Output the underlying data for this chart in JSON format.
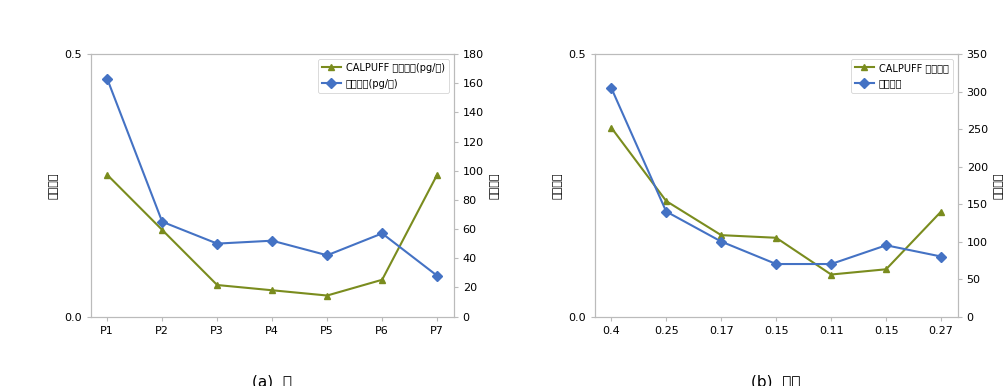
{
  "chart_a": {
    "x_labels": [
      "P1",
      "P2",
      "P3",
      "P4",
      "P5",
      "P6",
      "P7"
    ],
    "model_values": [
      0.27,
      0.165,
      0.06,
      0.05,
      0.04,
      0.07,
      0.27
    ],
    "measured_values": [
      163,
      65,
      50,
      52,
      42,
      57,
      28
    ],
    "left_ylim": [
      0,
      0.5
    ],
    "right_ylim": [
      0,
      180
    ],
    "right_yticks": [
      0,
      20,
      40,
      60,
      80,
      100,
      120,
      140,
      160,
      180
    ],
    "left_yticks": [
      0,
      0.5
    ],
    "legend_model": "CALPUFF 모델결과(pg/㎥)",
    "legend_measured": "실측결과(pg/㎥)",
    "left_ylabel": "모델결과",
    "right_ylabel": "실측결과",
    "subtitle": "(a)  봄"
  },
  "chart_b": {
    "x_labels": [
      "0.4",
      "0.25",
      "0.17",
      "0.15",
      "0.11",
      "0.15",
      "0.27"
    ],
    "model_values": [
      0.36,
      0.22,
      0.155,
      0.15,
      0.08,
      0.09,
      0.2
    ],
    "measured_values": [
      305,
      140,
      100,
      70,
      70,
      95,
      80
    ],
    "left_ylim": [
      0,
      0.5
    ],
    "right_ylim": [
      0,
      350
    ],
    "right_yticks": [
      0,
      50,
      100,
      150,
      200,
      250,
      300,
      350
    ],
    "left_yticks": [
      0,
      0.5
    ],
    "legend_model": "CALPUFF 모델결과",
    "legend_measured": "실측결과",
    "left_ylabel": "모델결과",
    "right_ylabel": "실측결과",
    "subtitle": "(b)  가을"
  },
  "model_color": "#7a8c1e",
  "measured_color": "#4472C4",
  "marker_model": "^",
  "marker_measured": "D",
  "linewidth": 1.5,
  "markersize": 5,
  "bg_color": "#ffffff",
  "fig_bg_color": "#ffffff",
  "spine_color": "#bbbbbb"
}
